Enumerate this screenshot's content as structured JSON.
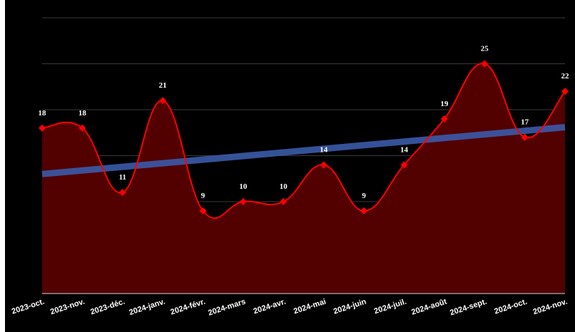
{
  "chart_data": {
    "type": "area",
    "categories": [
      "2023-oct.",
      "2023-nov.",
      "2023-déc.",
      "2024-janv.",
      "2024-févr.",
      "2024-mars",
      "2024-avr.",
      "2024-mai",
      "2024-juin",
      "2024-juil.",
      "2024-août",
      "2024-sept.",
      "2024-oct.",
      "2024-nov."
    ],
    "series": [
      {
        "values": [
          18,
          18,
          11,
          21,
          9,
          10,
          10,
          14,
          9,
          14,
          19,
          25,
          17,
          22
        ]
      }
    ],
    "trendline": {
      "start": 13,
      "end": 18.1
    },
    "title": "",
    "xlabel": "",
    "ylabel": "",
    "ylim": [
      0,
      30
    ],
    "grid": true,
    "legend": "none",
    "colors": {
      "background": "#000000",
      "line": "#ff0000",
      "area": "#520000",
      "marker": "#ff0000",
      "trendline": "#3b5aa8",
      "grid": "#3a3a3a",
      "text": "#ffffff"
    }
  }
}
